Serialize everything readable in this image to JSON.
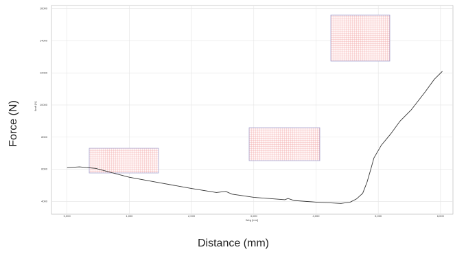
{
  "chart_data": {
    "type": "line",
    "ylabel": "Force (N)",
    "xlabel": "Distance (mm)",
    "inner_xlabel": "Weg [mm]",
    "inner_ylabel": "Kraft [N]",
    "x": [
      0,
      0.2,
      0.46,
      1.0,
      1.5,
      2.0,
      2.4,
      2.55,
      2.65,
      3.0,
      3.5,
      3.55,
      3.65,
      4.0,
      4.4,
      4.55,
      4.65,
      4.75,
      4.82,
      4.88,
      4.93,
      5.05,
      5.2,
      5.35,
      5.53,
      5.75,
      5.9,
      6.03
    ],
    "series": [
      {
        "name": "Force",
        "color": "#333333",
        "values": [
          6100,
          6150,
          6050,
          5500,
          5150,
          4800,
          4550,
          4620,
          4450,
          4250,
          4100,
          4180,
          4050,
          3950,
          3870,
          3950,
          4150,
          4500,
          5200,
          6000,
          6700,
          7500,
          8200,
          9000,
          9700,
          10800,
          11600,
          12100
        ]
      }
    ],
    "xlim": [
      -0.25,
      6.2
    ],
    "ylim": [
      3200,
      16200
    ],
    "xticks": [
      {
        "value": 0,
        "label": "0,000"
      },
      {
        "value": 1,
        "label": "1,000"
      },
      {
        "value": 2,
        "label": "2,000"
      },
      {
        "value": 3,
        "label": "3,000"
      },
      {
        "value": 4,
        "label": "4,000"
      },
      {
        "value": 5,
        "label": "5,000"
      },
      {
        "value": 6,
        "label": "6,000"
      }
    ],
    "yticks": [
      4000,
      6000,
      8000,
      10000,
      12000,
      14000,
      16000
    ],
    "grid": true
  }
}
